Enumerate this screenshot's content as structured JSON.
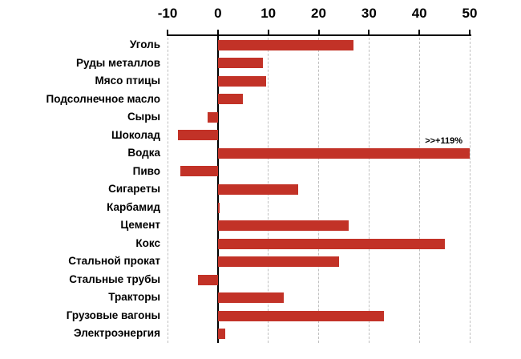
{
  "chart_data": {
    "type": "bar",
    "orientation": "horizontal",
    "title": "",
    "xlabel": "",
    "ylabel": "",
    "categories": [
      "Уголь",
      "Руды металлов",
      "Мясо птицы",
      "Подсолнечное масло",
      "Сыры",
      "Шоколад",
      "Водка",
      "Пиво",
      "Сигареты",
      "Карбамид",
      "Цемент",
      "Кокс",
      "Стальной прокат",
      "Стальные трубы",
      "Тракторы",
      "Грузовые вагоны",
      "Электроэнергия"
    ],
    "values": [
      27,
      9,
      9.5,
      5,
      -2,
      -8,
      119,
      -7.5,
      16,
      0.3,
      26,
      45,
      24,
      -4,
      13,
      33,
      1.5
    ],
    "clip_max": 50,
    "xlim": [
      -10,
      50
    ],
    "x_ticks": [
      -10,
      0,
      10,
      20,
      30,
      40,
      50
    ],
    "grid": true,
    "legend": false,
    "annotation": {
      "text": ">>+119%",
      "category": "Водка"
    },
    "bar_color": "#c23227",
    "gridline_color": "#c0c0c0",
    "axis_color": "#000000"
  }
}
